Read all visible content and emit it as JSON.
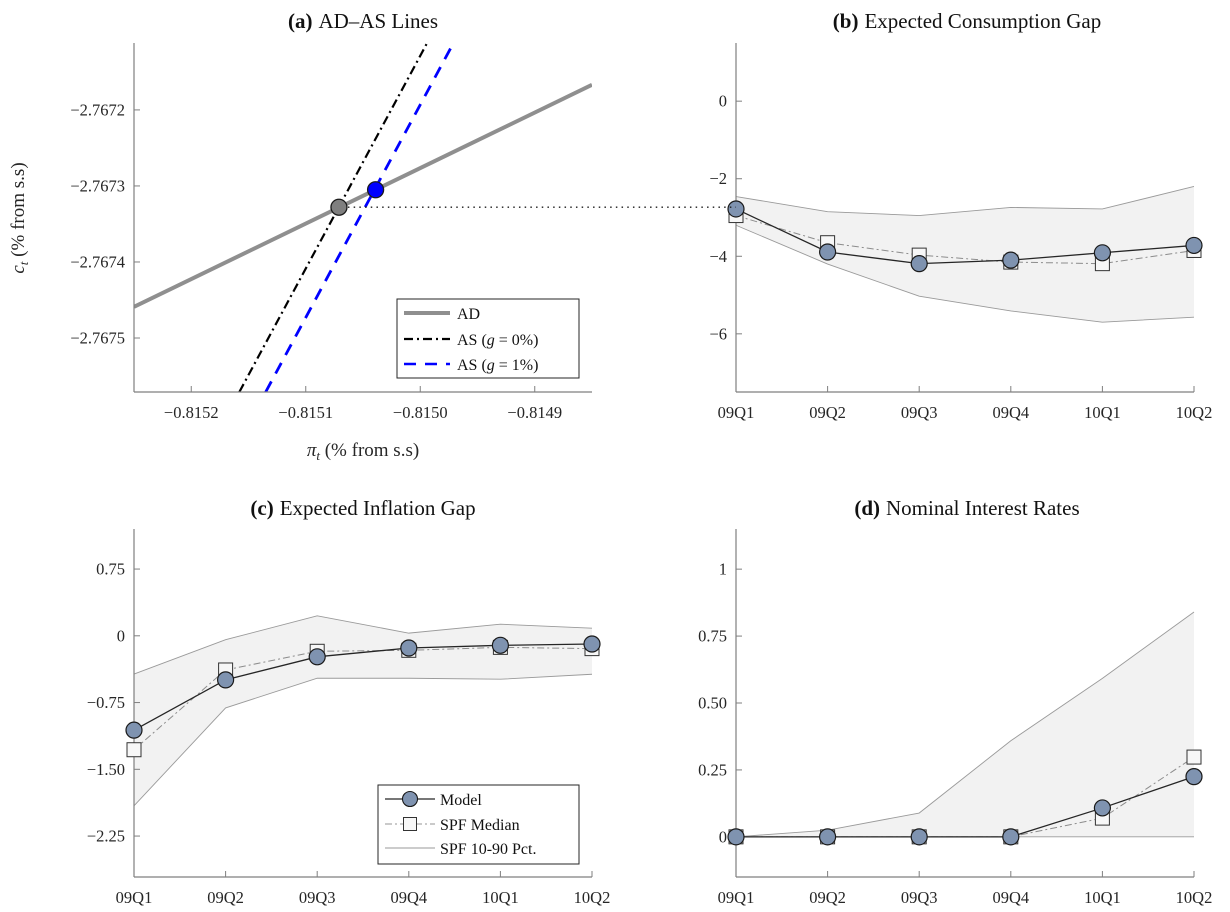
{
  "figure": {
    "colors": {
      "ad_line": "#8f8f8f",
      "as_g0_line": "#000000",
      "as_g1_line": "#0000ff",
      "point_g0": "#7f7f7f",
      "point_g1": "#0000ff",
      "model_marker": "#7f93b0",
      "model_line": "#262626",
      "spf_marker": "#f7f7f7",
      "spf_line": "#8c8c8c",
      "band_fill": "#f2f2f2",
      "band_line": "#9a9a9a",
      "axis": "#7f7f7f"
    }
  },
  "chart_data": [
    {
      "id": "a",
      "type": "line",
      "title_prefix": "(a)",
      "title": "AD–AS Lines",
      "xlabel": "π_t (% from s.s)",
      "xlabel_sym": "π",
      "xlabel_sub": "t",
      "xlabel_rest": " (% from s.s)",
      "ylabel": "c_t (% from s.s)",
      "ylabel_sym": "c",
      "ylabel_sub": "t",
      "ylabel_rest": " (% from s.s)",
      "xlim": [
        -0.81525,
        -0.81485
      ],
      "ylim": [
        -2.767571,
        -2.767112
      ],
      "xticks": [
        -0.8152,
        -0.8151,
        -0.815,
        -0.8149
      ],
      "xtick_labels": [
        "−0.8152",
        "−0.8151",
        "−0.8150",
        "−0.8149"
      ],
      "yticks": [
        -2.7672,
        -2.7673,
        -2.7674,
        -2.7675
      ],
      "ytick_labels": [
        "−2.7672",
        "−2.7673",
        "−2.7674",
        "−2.7675"
      ],
      "grid": false,
      "legend_position": "bottom-right",
      "series": [
        {
          "name": "AD",
          "key": "ad",
          "style": "solid",
          "points": [
            [
              -0.81525,
              -2.767459
            ],
            [
              -0.81485,
              -2.767167
            ]
          ]
        },
        {
          "name": "AS (g = 0%)",
          "label_prefix": "AS  (",
          "label_var": "g",
          "label_suffix": " = 0%)",
          "key": "as0",
          "style": "dashdot",
          "points": [
            [
              -0.815158,
              -2.767571
            ],
            [
              -0.814994,
              -2.767112
            ]
          ]
        },
        {
          "name": "AS (g = 1%)",
          "label_prefix": "AS  (",
          "label_var": "g",
          "label_suffix": " = 1%)",
          "key": "as1",
          "style": "dashed",
          "points": [
            [
              -0.815135,
              -2.767571
            ],
            [
              -0.814971,
              -2.767112
            ]
          ]
        }
      ],
      "equilibria": [
        {
          "name": "equilibrium g=0%",
          "x": -0.815071,
          "y": -2.767328
        },
        {
          "name": "equilibrium g=1%",
          "x": -0.815039,
          "y": -2.767305
        }
      ],
      "connector": {
        "from_panel": "a",
        "to_panel": "b",
        "y": -2.767328,
        "style": "dotted"
      }
    },
    {
      "id": "b",
      "type": "line",
      "title_prefix": "(b)",
      "title": "Expected Consumption Gap",
      "categories": [
        "09Q1",
        "09Q2",
        "09Q3",
        "09Q4",
        "10Q1",
        "10Q2"
      ],
      "ylim": [
        -7.5,
        1.5
      ],
      "yticks": [
        0,
        -2,
        -4,
        -6
      ],
      "ytick_labels": [
        "0",
        "−2",
        "−4",
        "−6"
      ],
      "grid": false,
      "series": [
        {
          "name": "Model",
          "values": [
            -2.78,
            -3.89,
            -4.19,
            -4.1,
            -3.91,
            -3.72
          ]
        },
        {
          "name": "SPF Median",
          "values": [
            -2.95,
            -3.65,
            -3.97,
            -4.15,
            -4.19,
            -3.85
          ]
        },
        {
          "name": "SPF 10-90 Pct.",
          "upper": [
            -2.46,
            -2.85,
            -2.95,
            -2.74,
            -2.78,
            -2.2
          ],
          "lower": [
            -3.2,
            -4.2,
            -5.03,
            -5.41,
            -5.7,
            -5.57
          ]
        }
      ]
    },
    {
      "id": "c",
      "type": "line",
      "title_prefix": "(c)",
      "title": "Expected Inflation Gap",
      "categories": [
        "09Q1",
        "09Q2",
        "09Q3",
        "09Q4",
        "10Q1",
        "10Q2"
      ],
      "ylim": [
        -2.71,
        1.2
      ],
      "yticks": [
        0.75,
        0,
        -0.75,
        -1.5,
        -2.25
      ],
      "ytick_labels": [
        "0.75",
        "0",
        "−0.75",
        "−1.50",
        "−2.25"
      ],
      "grid": false,
      "legend_position": "bottom-right",
      "legend": [
        "Model",
        "SPF Median",
        "SPF 10-90 Pct."
      ],
      "series": [
        {
          "name": "Model",
          "values": [
            -1.06,
            -0.495,
            -0.236,
            -0.137,
            -0.107,
            -0.092
          ]
        },
        {
          "name": "SPF Median",
          "values": [
            -1.28,
            -0.384,
            -0.174,
            -0.163,
            -0.13,
            -0.144
          ]
        },
        {
          "name": "SPF 10-90 Pct.",
          "upper": [
            -0.43,
            -0.044,
            0.225,
            0.03,
            0.13,
            0.085
          ],
          "lower": [
            -1.91,
            -0.81,
            -0.477,
            -0.477,
            -0.488,
            -0.432
          ]
        }
      ]
    },
    {
      "id": "d",
      "type": "line",
      "title_prefix": "(d)",
      "title": "Nominal Interest Rates",
      "categories": [
        "09Q1",
        "09Q2",
        "09Q3",
        "09Q4",
        "10Q1",
        "10Q2"
      ],
      "ylim": [
        -0.15,
        1.15
      ],
      "yticks": [
        1,
        0.75,
        0.5,
        0.25,
        0
      ],
      "ytick_labels": [
        "1",
        "0.75",
        "0.50",
        "0.25",
        "0"
      ],
      "grid": false,
      "series": [
        {
          "name": "Model",
          "values": [
            0,
            0,
            0,
            0,
            0.108,
            0.225
          ]
        },
        {
          "name": "SPF Median",
          "values": [
            0,
            0,
            0,
            0,
            0.07,
            0.298
          ]
        },
        {
          "name": "SPF 10-90 Pct.",
          "upper": [
            0,
            0.025,
            0.089,
            0.359,
            0.592,
            0.84
          ],
          "lower": [
            0,
            0,
            0,
            0,
            0,
            0
          ]
        }
      ]
    }
  ]
}
